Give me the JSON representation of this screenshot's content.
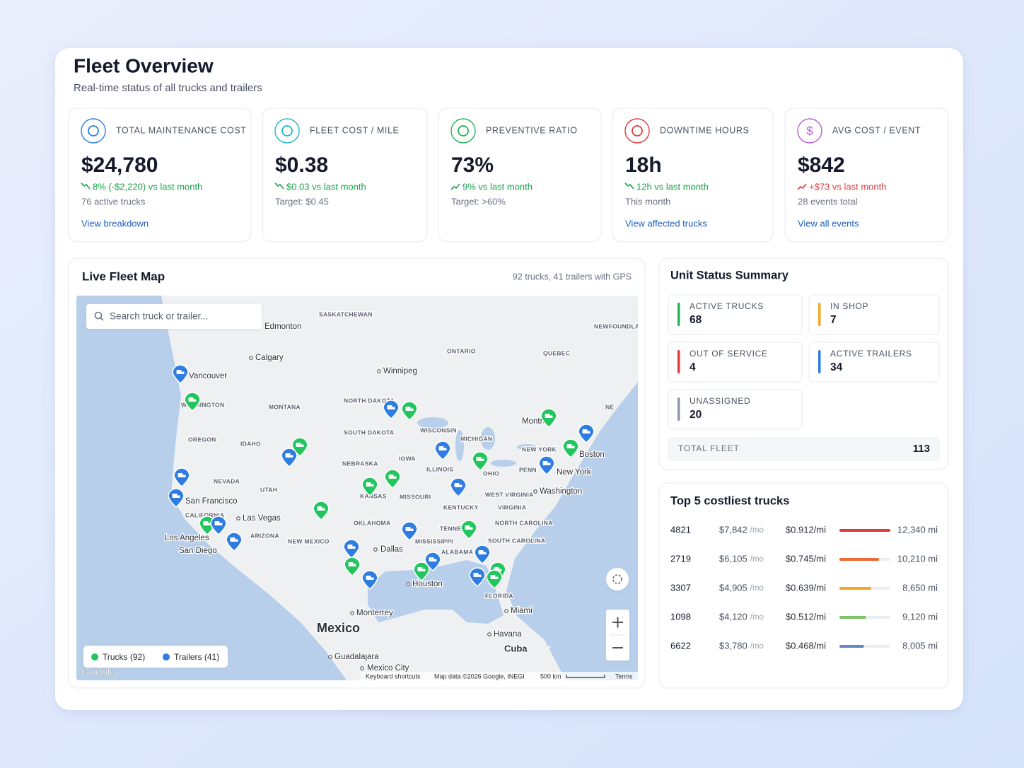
{
  "header": {
    "title": "Fleet Overview",
    "subtitle": "Real-time status of all trucks and trailers"
  },
  "kpis": [
    {
      "label": "TOTAL MAINTENANCE COST",
      "value": "$24,780",
      "delta": "8% (-$2,220) vs last month",
      "trend": "down",
      "tone": "good",
      "note": "76 active trucks",
      "link": "View breakdown",
      "color": "#2f7de1"
    },
    {
      "label": "FLEET COST / MILE",
      "value": "$0.38",
      "delta": "$0.03 vs last month",
      "trend": "down",
      "tone": "good",
      "note": "Target: $0.45",
      "color": "#1fb5c9"
    },
    {
      "label": "PREVENTIVE RATIO",
      "value": "73%",
      "delta": "9% vs last month",
      "trend": "up",
      "tone": "good",
      "note": "Target: >60%",
      "color": "#22b455"
    },
    {
      "label": "DOWNTIME HOURS",
      "value": "18h",
      "delta": "12h vs last month",
      "trend": "down",
      "tone": "good",
      "note": "This month",
      "link": "View affected trucks",
      "color": "#e5383b"
    },
    {
      "label": "AVG COST / EVENT",
      "value": "$842",
      "delta": "+$73 vs last month",
      "trend": "up",
      "tone": "bad",
      "note": "28 events total",
      "link": "View all events",
      "color": "#b45ad8",
      "icon_text": "$"
    }
  ],
  "map": {
    "title": "Live Fleet Map",
    "summary": "92 trucks, 41 trailers with GPS",
    "search_placeholder": "Search truck or trailer...",
    "legend": [
      {
        "label": "Trucks (92)",
        "color": "#22c55e"
      },
      {
        "label": "Trailers (41)",
        "color": "#2f7de1"
      }
    ],
    "labels": [
      "SASKATCHEWAN",
      "Edmonton",
      "Calgary",
      "Vancouver",
      "WASHINGTON",
      "Winnipeg",
      "MONTANA",
      "OREGON",
      "IDAHO",
      "NEVADA",
      "UTAH",
      "San Francisco",
      "Las Vegas",
      "CALIFORNIA",
      "Los Angeles",
      "San Diego",
      "ARIZONA",
      "NEW MEXICO",
      "NORTH DAKOTA",
      "SOUTH DAKOTA",
      "NEBRASKA",
      "KANSAS",
      "OKLAHOMA",
      "Dallas",
      "Houston",
      "Monterrey",
      "Mexico",
      "Guadalajara",
      "Mexico City",
      "IOWA",
      "MISSOURI",
      "ILLINOIS",
      "WISCONSIN",
      "MICHIGAN",
      "ONTARIO",
      "QUEBEC",
      "NEW YORK",
      "PENN",
      "OHIO",
      "WEST VIRGINIA",
      "VIRGINIA",
      "KENTUCKY",
      "NORTH CAROLINA",
      "SOUTH CAROLINA",
      "TENNESSEE",
      "MISSISSIPPI",
      "ALABAMA",
      "FLORIDA",
      "Miami",
      "Havana",
      "Cuba",
      "Washington",
      "New York",
      "Boston",
      "Montreal",
      "NEWFOUNDLAND AND LABRADOR",
      "NE"
    ],
    "logo": "Google",
    "attribution": [
      "Keyboard shortcuts",
      "Map data ©2026 Google, INEGI",
      "500 km",
      "Terms"
    ]
  },
  "units": {
    "title": "Unit Status Summary",
    "tiles": [
      {
        "label": "ACTIVE TRUCKS",
        "value": 68,
        "color": "#22b455"
      },
      {
        "label": "IN SHOP",
        "value": 7,
        "color": "#f5a623"
      },
      {
        "label": "OUT OF SERVICE",
        "value": 4,
        "color": "#e5383b"
      },
      {
        "label": "ACTIVE TRAILERS",
        "value": 34,
        "color": "#2f7de1"
      },
      {
        "label": "UNASSIGNED",
        "value": 20,
        "color": "#8a96ad"
      }
    ],
    "total_label": "TOTAL FLEET",
    "total": 113
  },
  "costliest": {
    "title": "Top 5 costliest trucks",
    "unit": "/mo",
    "rows": [
      {
        "id": "4821",
        "cost": 7842,
        "cost_label": "$7,842",
        "per_mile": "$0.912/mi",
        "miles": "12,340 mi",
        "color": "#e5383b"
      },
      {
        "id": "2719",
        "cost": 6105,
        "cost_label": "$6,105",
        "per_mile": "$0.745/mi",
        "miles": "10,210 mi",
        "color": "#f06a35"
      },
      {
        "id": "3307",
        "cost": 4905,
        "cost_label": "$4,905",
        "per_mile": "$0.639/mi",
        "miles": "8,650 mi",
        "color": "#f5a623"
      },
      {
        "id": "1098",
        "cost": 4120,
        "cost_label": "$4,120",
        "per_mile": "$0.512/mi",
        "miles": "9,120 mi",
        "color": "#7cc46a"
      },
      {
        "id": "6622",
        "cost": 3780,
        "cost_label": "$3,780",
        "per_mile": "$0.468/mi",
        "miles": "8,005 mi",
        "color": "#6b86c4"
      }
    ]
  }
}
